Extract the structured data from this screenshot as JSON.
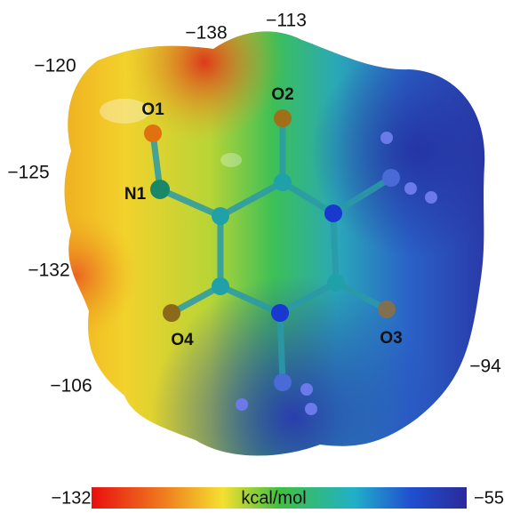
{
  "potential_labels": [
    "−120",
    "−138",
    "−113",
    "−125",
    "−132",
    "−106",
    "−94"
  ],
  "atom_labels": [
    "O1",
    "O2",
    "N1",
    "O4",
    "O3"
  ],
  "colorbar": {
    "min_label": "−132",
    "max_label": "−55",
    "unit": "kcal/mol"
  }
}
